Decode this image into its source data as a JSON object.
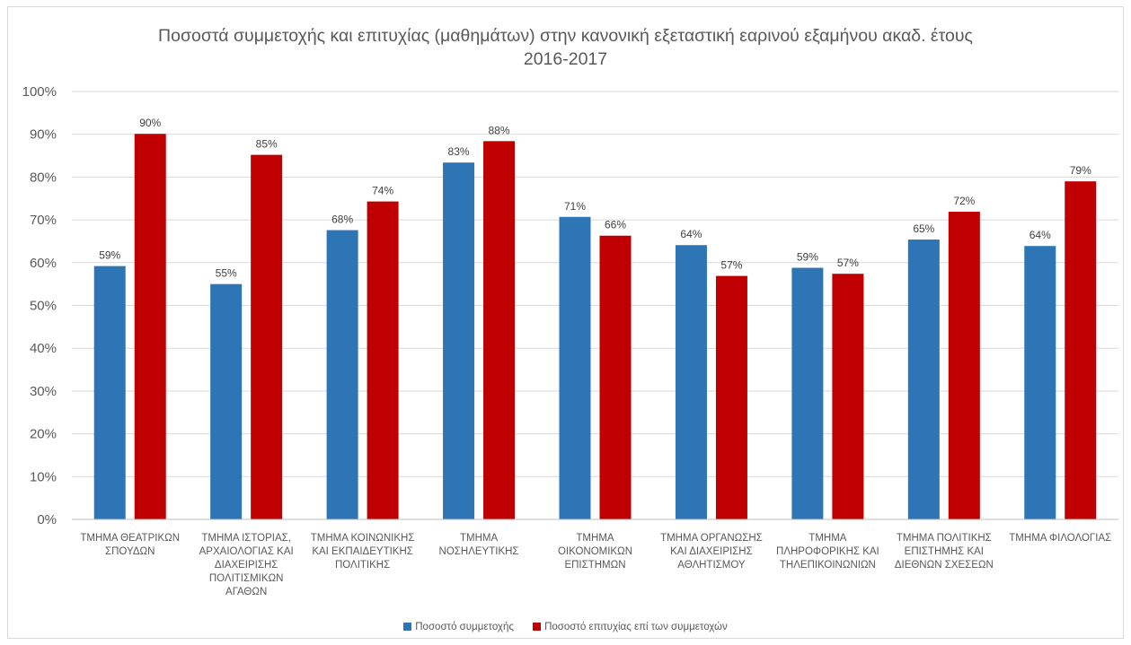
{
  "chart_data": {
    "type": "bar",
    "title_lines": [
      "Ποσοστά συμμετοχής και επιτυχίας (μαθημάτων) στην κανονική εξεταστική εαρινού εξαμήνου ακαδ. έτους",
      "2016-2017"
    ],
    "categories": [
      [
        "ΤΜΗΜΑ ΘΕΑΤΡΙΚΩΝ",
        "ΣΠΟΥΔΩΝ"
      ],
      [
        "ΤΜΗΜΑ ΙΣΤΟΡΙΑΣ,",
        "ΑΡΧΑΙΟΛΟΓΙΑΣ ΚΑΙ",
        "ΔΙΑΧΕΙΡΙΣΗΣ",
        "ΠΟΛΙΤΙΣΜΙΚΩΝ",
        "ΑΓΑΘΩΝ"
      ],
      [
        "ΤΜΗΜΑ ΚΟΙΝΩΝΙΚΗΣ",
        "ΚΑΙ ΕΚΠΑΙΔΕΥΤΙΚΗΣ",
        "ΠΟΛΙΤΙΚΗΣ"
      ],
      [
        "ΤΜΗΜΑ",
        "ΝΟΣΗΛΕΥΤΙΚΗΣ"
      ],
      [
        "ΤΜΗΜΑ",
        "ΟΙΚΟΝΟΜΙΚΩΝ",
        "ΕΠΙΣΤΗΜΩΝ"
      ],
      [
        "ΤΜΗΜΑ ΟΡΓΑΝΩΣΗΣ",
        "ΚΑΙ ΔΙΑΧΕΙΡΙΣΗΣ",
        "ΑΘΛΗΤΙΣΜΟΥ"
      ],
      [
        "ΤΜΗΜΑ",
        "ΠΛΗΡΟΦΟΡΙΚΗΣ ΚΑΙ",
        "ΤΗΛΕΠΙΚΟΙΝΩΝΙΩΝ"
      ],
      [
        "ΤΜΗΜΑ ΠΟΛΙΤΙΚΗΣ",
        "ΕΠΙΣΤΗΜΗΣ ΚΑΙ",
        "ΔΙΕΘΝΩΝ ΣΧΕΣΕΩΝ"
      ],
      [
        "ΤΜΗΜΑ ΦΙΛΟΛΟΓΙΑΣ"
      ]
    ],
    "series": [
      {
        "name": "Ποσοστό συμμετοχής",
        "color": "#2e75b6",
        "values": [
          59.2,
          55.0,
          67.6,
          83.4,
          70.7,
          64.1,
          58.8,
          65.4,
          63.9
        ],
        "labels": [
          "59%",
          "55%",
          "68%",
          "83%",
          "71%",
          "64%",
          "59%",
          "65%",
          "64%"
        ]
      },
      {
        "name": "Ποσοστό επιτυχίας επί των συμμετοχών",
        "color": "#c00000",
        "values": [
          90.1,
          85.2,
          74.3,
          88.4,
          66.3,
          56.9,
          57.4,
          71.9,
          79.0
        ],
        "labels": [
          "90%",
          "85%",
          "74%",
          "88%",
          "66%",
          "57%",
          "57%",
          "72%",
          "79%"
        ]
      }
    ],
    "ylim": [
      0,
      100
    ],
    "yticks": [
      0,
      10,
      20,
      30,
      40,
      50,
      60,
      70,
      80,
      90,
      100
    ],
    "ytick_labels": [
      "0%",
      "10%",
      "20%",
      "30%",
      "40%",
      "50%",
      "60%",
      "70%",
      "80%",
      "90%",
      "100%"
    ],
    "grid": true,
    "legend": "bottom"
  }
}
